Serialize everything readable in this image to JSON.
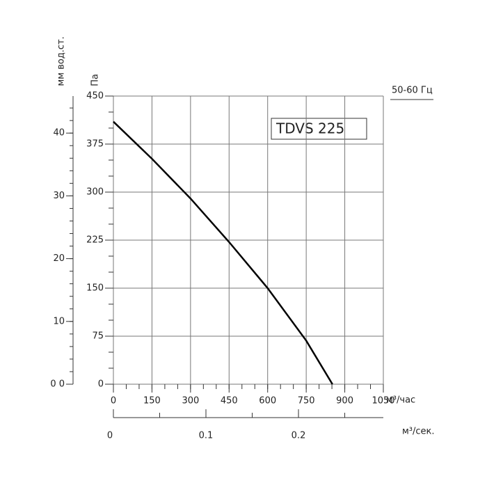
{
  "chart_data": {
    "type": "line",
    "title": "TDVS 225",
    "annotation": "50-60 Гц",
    "x_label": "м³/час",
    "x2_label": "м³/сек.",
    "y_label": "Па",
    "y2_label": "мм вод.ст.",
    "series": [
      {
        "color": "#000000",
        "x": [
          0,
          150,
          300,
          450,
          600,
          750,
          852
        ],
        "values": [
          410,
          352,
          290,
          222,
          150,
          68,
          0
        ]
      }
    ],
    "xlim": [
      0,
      1050
    ],
    "xticks": [
      0,
      150,
      300,
      450,
      600,
      750,
      900,
      1050
    ],
    "xminorticks": [
      0,
      50,
      100,
      150,
      200,
      250,
      300,
      350,
      400,
      450,
      500,
      550,
      600,
      650,
      700,
      750,
      800,
      850,
      900,
      950,
      1000,
      1050
    ],
    "x2lim": [
      0,
      0.2917
    ],
    "x2ticks": [
      0,
      0.1,
      0.2
    ],
    "x2minorticks": [
      0,
      0.05,
      0.1,
      0.15,
      0.2,
      0.25
    ],
    "ylim": [
      0,
      450
    ],
    "yticks": [
      0,
      75,
      150,
      225,
      300,
      375,
      450
    ],
    "yminorticks": [
      0,
      25,
      50,
      75,
      100,
      125,
      150,
      175,
      200,
      225,
      250,
      275,
      300,
      325,
      350,
      375,
      400,
      425,
      450
    ],
    "y2lim": [
      0,
      45.9
    ],
    "y2ticks": [
      {
        "value": 0,
        "label": "0 0"
      },
      10,
      20,
      30,
      40
    ],
    "y2minorticks": [
      0,
      2,
      4,
      6,
      8,
      10,
      12,
      14,
      16,
      18,
      20,
      22,
      24,
      26,
      28,
      30,
      32,
      34,
      36,
      38,
      40,
      42,
      44
    ],
    "grid": true
  }
}
